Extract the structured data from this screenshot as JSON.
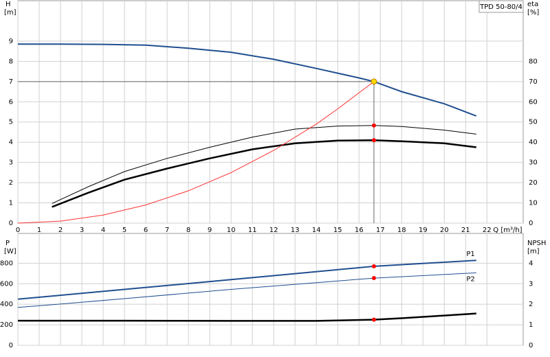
{
  "chart_data": [
    {
      "type": "line",
      "title": "TPD 50-80/4",
      "ylabel": "H",
      "yunit": "[m]",
      "y2label": "eta",
      "y2unit": "[%]",
      "xlabel": "Q [m³/h]",
      "xlim": [
        0,
        23.7
      ],
      "xticks": [
        0,
        1,
        2,
        3,
        4,
        5,
        6,
        7,
        8,
        9,
        10,
        11,
        12,
        13,
        14,
        15,
        16,
        17,
        18,
        19,
        20,
        21,
        22
      ],
      "ylim": [
        0,
        11
      ],
      "yticks": [
        0,
        1,
        2,
        3,
        4,
        5,
        6,
        7,
        8,
        9
      ],
      "y2lim": [
        0,
        110
      ],
      "y2ticks": [
        0,
        10,
        20,
        30,
        40,
        50,
        60,
        70,
        80
      ],
      "grid": true,
      "duty_point": {
        "x": 16.7
      },
      "series": [
        {
          "color": "#1f4e8f",
          "line_width": 2,
          "marker_color": "#ffd700",
          "reference": true,
          "x": [
            0,
            2,
            4,
            6,
            8,
            10,
            12,
            14,
            16,
            16.7,
            18,
            20,
            21.5
          ],
          "values": [
            8.85,
            8.85,
            8.84,
            8.8,
            8.65,
            8.45,
            8.1,
            7.65,
            7.18,
            7.0,
            6.5,
            5.9,
            5.3
          ]
        },
        {
          "color": "#000000",
          "line_width": 1,
          "axis": "y2",
          "marker_color": "#ff0000",
          "x": [
            1.6,
            3.3,
            5,
            7,
            9,
            11,
            13,
            15,
            16.7,
            18,
            20,
            21.5
          ],
          "values": [
            9.7,
            18,
            25.5,
            32,
            37.5,
            42.5,
            46.5,
            48,
            48.3,
            47.8,
            46,
            44
          ]
        },
        {
          "color": "#000000",
          "line_width": 2.5,
          "axis": "y2",
          "marker_color": "#ff0000",
          "x": [
            1.6,
            3.3,
            5,
            7,
            9,
            11,
            13,
            15,
            16.7,
            18,
            20,
            21.5
          ],
          "values": [
            8,
            15,
            21.5,
            27,
            32,
            36.5,
            39.5,
            40.8,
            41,
            40.5,
            39.5,
            37.5
          ]
        },
        {
          "color": "#ff3030",
          "line_width": 1,
          "x": [
            0,
            2,
            4,
            6,
            8,
            10,
            12,
            14,
            15,
            16.7
          ],
          "values": [
            0,
            0.1,
            0.4,
            0.9,
            1.6,
            2.5,
            3.6,
            4.9,
            5.65,
            7.0
          ]
        }
      ]
    },
    {
      "type": "line",
      "ylabel": "P",
      "yunit": "[W]",
      "y2label": "NPSH",
      "y2unit": "[m]",
      "xlim": [
        0,
        23.7
      ],
      "sharex": true,
      "ylim": [
        0,
        1090
      ],
      "yticks": [
        0,
        200,
        400,
        600,
        800
      ],
      "y2lim": [
        0,
        5.45
      ],
      "y2ticks": [
        0,
        1,
        2,
        3,
        4
      ],
      "grid": true,
      "duty_point": {
        "x": 16.7
      },
      "series": [
        {
          "name": "P1",
          "color": "#1f4e8f",
          "line_width": 2,
          "marker_color": "#ff0000",
          "x": [
            0,
            1.6,
            5,
            10,
            16.7,
            21.5
          ],
          "values": [
            450,
            480,
            545,
            640,
            770,
            828
          ]
        },
        {
          "name": "P2",
          "color": "#1f4e8f",
          "line_width": 1,
          "marker_color": "#ff0000",
          "x": [
            0,
            1.6,
            5,
            10,
            16.7,
            21.5
          ],
          "values": [
            370,
            395,
            455,
            545,
            655,
            706
          ]
        },
        {
          "color": "#000000",
          "line_width": 2.5,
          "axis": "y2",
          "marker_color": "#ff0000",
          "x": [
            0,
            5,
            10,
            14,
            16.7,
            18,
            20,
            21.5
          ],
          "values": [
            1.2,
            1.2,
            1.19,
            1.19,
            1.25,
            1.32,
            1.45,
            1.55
          ]
        }
      ]
    }
  ]
}
